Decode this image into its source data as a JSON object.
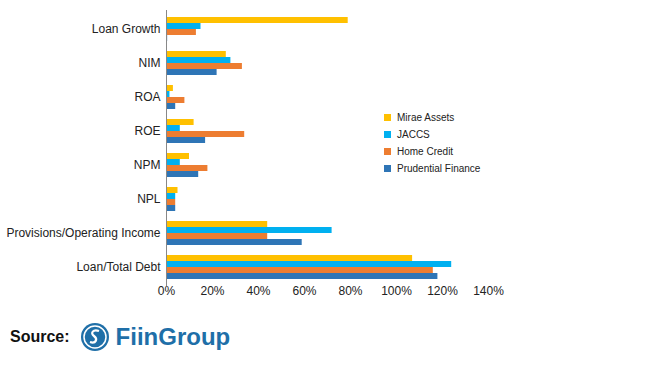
{
  "chart_data": {
    "type": "bar",
    "orientation": "horizontal",
    "categories": [
      "Loan Growth",
      "NIM",
      "ROA",
      "ROE",
      "NPM",
      "NPL",
      "Provisions/Operating Income",
      "Loan/Total Debt"
    ],
    "series": [
      {
        "name": "Mirae Assets",
        "color": "#FFC000",
        "values": [
          79,
          26,
          3,
          12,
          10,
          5,
          44,
          107
        ]
      },
      {
        "name": "JACCS",
        "color": "#00B0F0",
        "values": [
          15,
          28,
          1.5,
          6,
          6,
          4,
          72,
          124
        ]
      },
      {
        "name": "Home Credit",
        "color": "#ED7D31",
        "values": [
          13,
          33,
          8,
          34,
          18,
          4,
          44,
          116
        ]
      },
      {
        "name": "Prudential Finance",
        "color": "#2E75B6",
        "values": [
          0.5,
          22,
          4,
          17,
          14,
          4,
          59,
          118
        ]
      }
    ],
    "xlim": [
      0,
      140
    ],
    "xticks": [
      {
        "value": 0,
        "label": "0%"
      },
      {
        "value": 20,
        "label": "20%"
      },
      {
        "value": 40,
        "label": "40%"
      },
      {
        "value": 60,
        "label": "60%"
      },
      {
        "value": 80,
        "label": "80%"
      },
      {
        "value": 100,
        "label": "100%"
      },
      {
        "value": 120,
        "label": "120%"
      },
      {
        "value": 140,
        "label": "140%"
      }
    ],
    "grid": false,
    "legend": "right",
    "annotations": [
      {
        "text": "Source:"
      },
      {
        "text": "FiinGroup"
      }
    ]
  }
}
